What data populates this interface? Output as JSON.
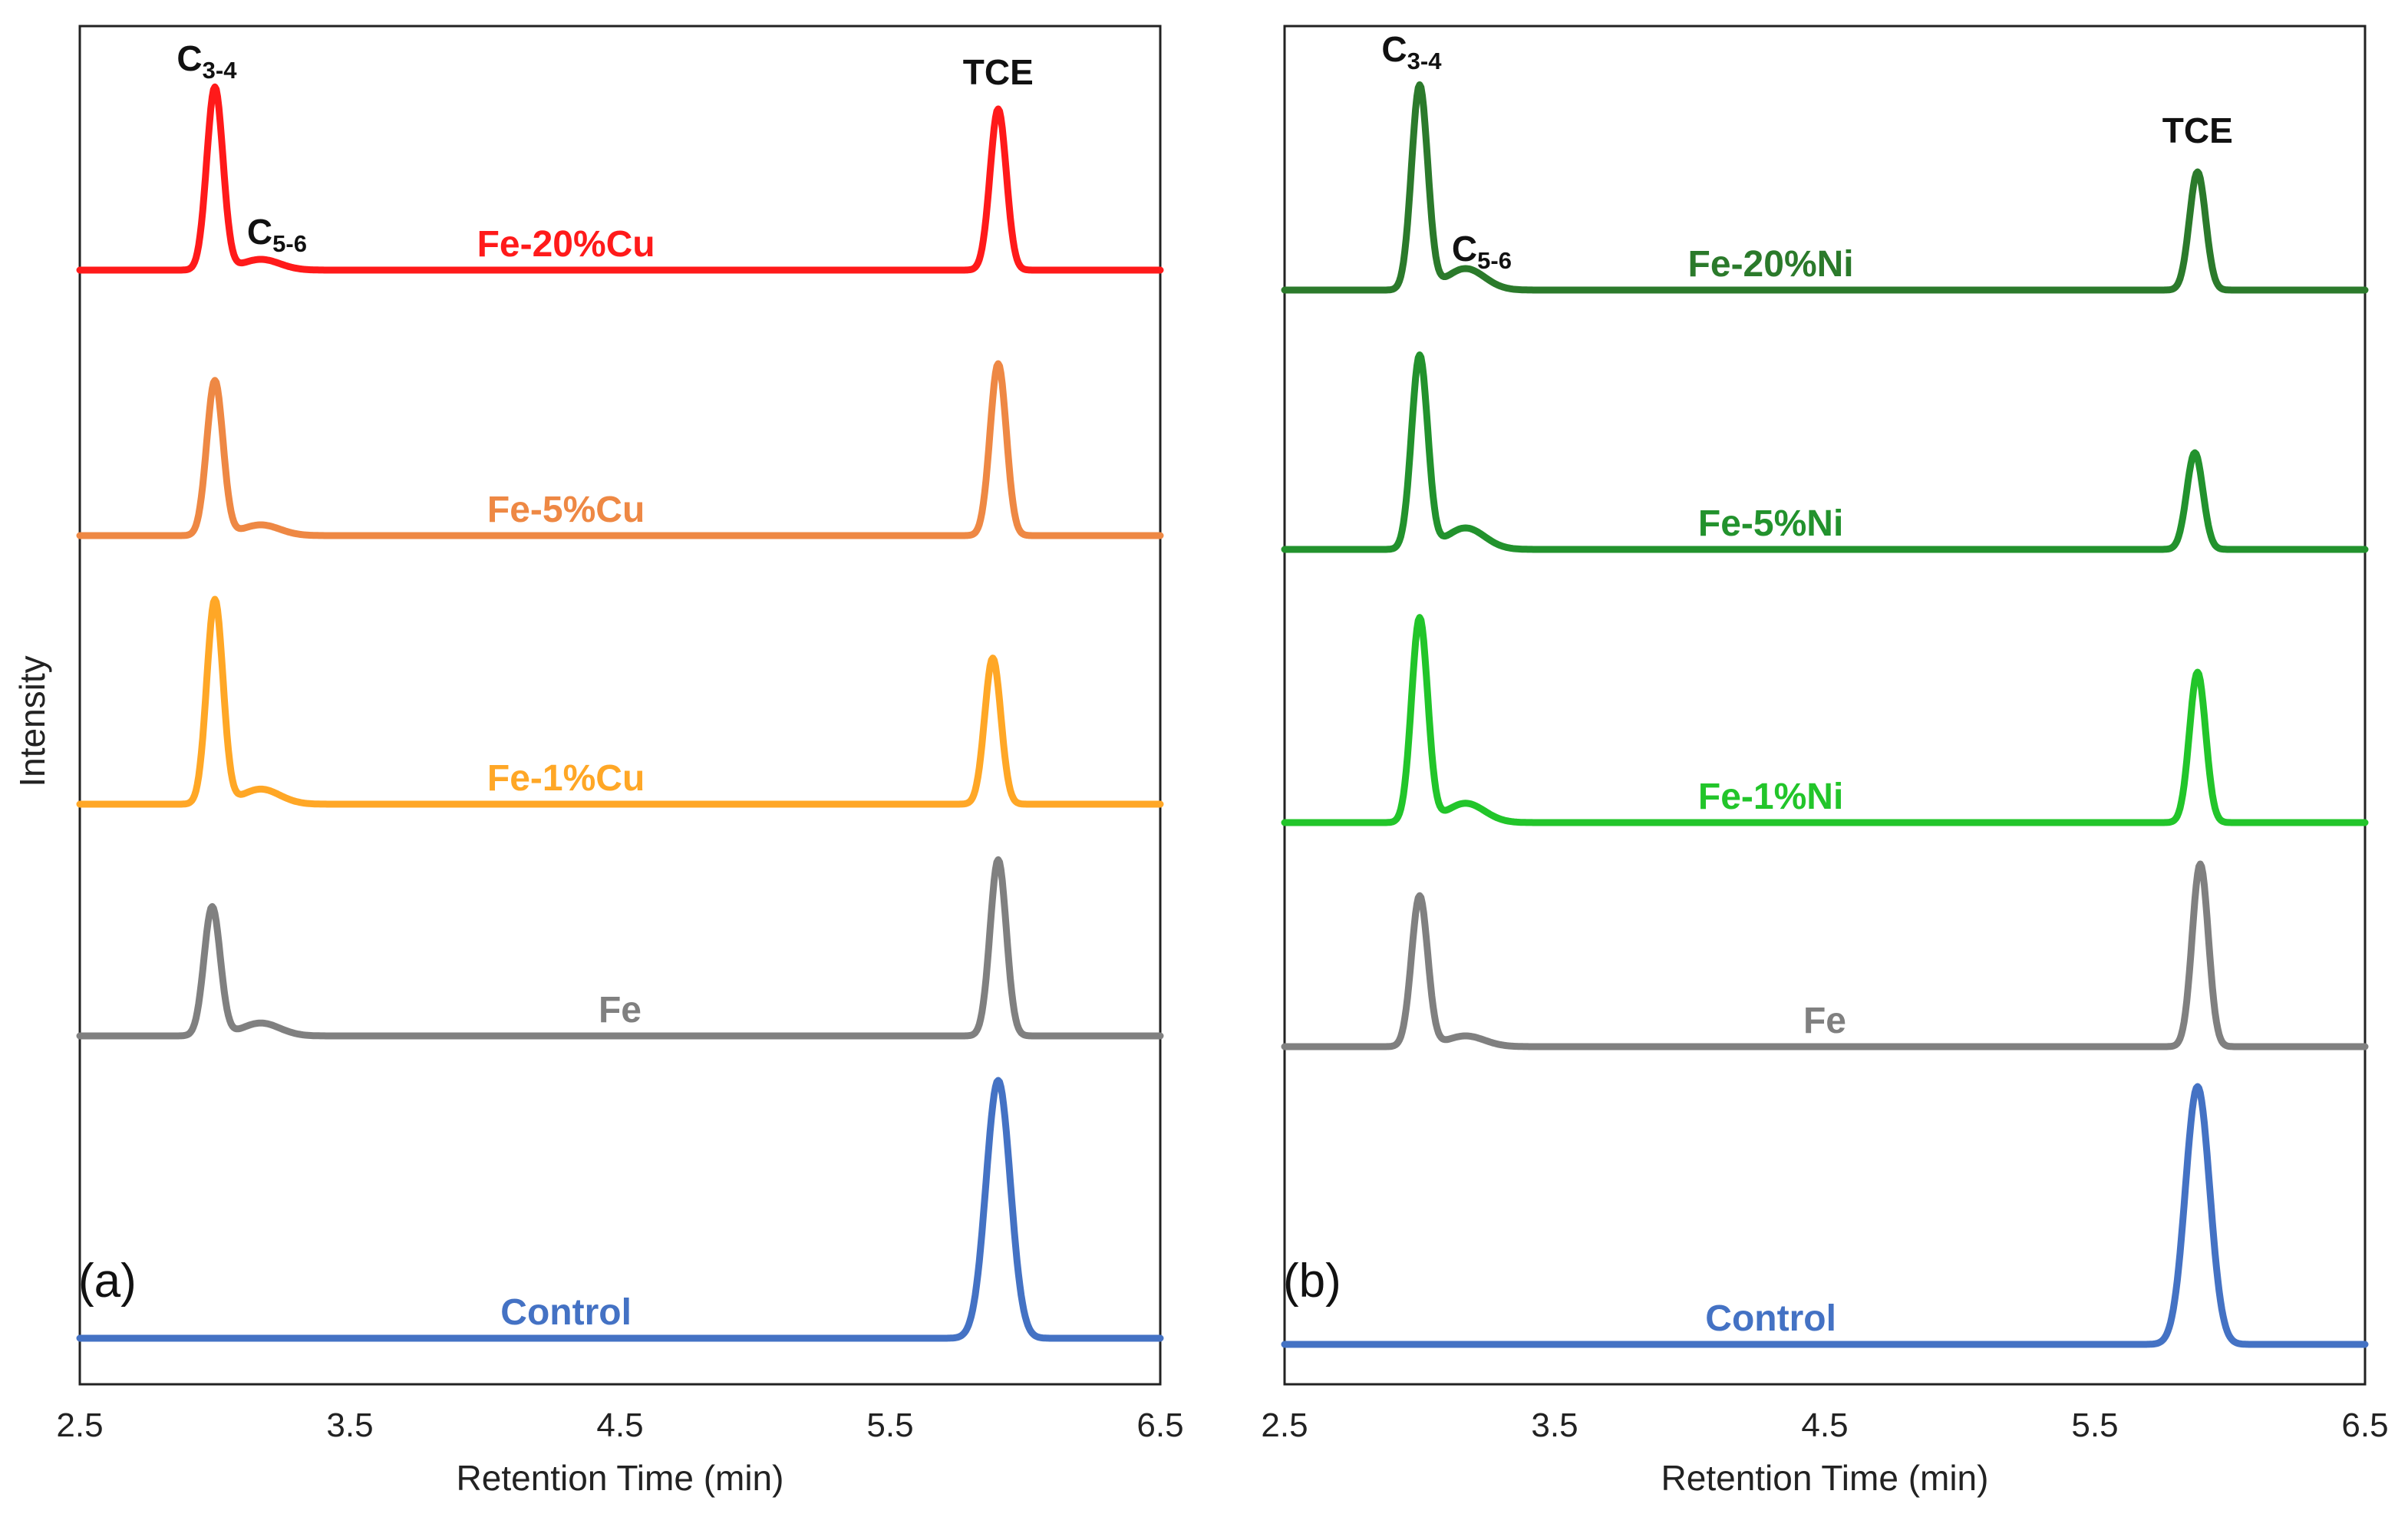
{
  "figure": {
    "y_axis_title": "Intensity"
  },
  "chart_data": [
    {
      "type": "line",
      "panel": "(a)",
      "xlabel": "Retention Time (min)",
      "ylabel": "Intensity",
      "xlim": [
        2.5,
        6.5
      ],
      "xticks": [
        "2.5",
        "3.5",
        "4.5",
        "5.5",
        "6.5"
      ],
      "grid": false,
      "peak_labels": [
        {
          "base": "C",
          "sub": "3-4",
          "x": 2.97
        },
        {
          "base": "C",
          "sub": "5-6",
          "x": 3.23
        },
        {
          "base": "TCE",
          "sub": "",
          "x": 5.9
        }
      ],
      "series": [
        {
          "name": "Fe-20%Cu",
          "color": "#ff1a1a",
          "label_x": 4.3,
          "peaks": [
            {
              "x": 3.0,
              "height": 0.85
            },
            {
              "x": 3.17,
              "height": 0.05
            },
            {
              "x": 5.9,
              "height": 0.75
            }
          ]
        },
        {
          "name": "Fe-5%Cu",
          "color": "#ee8844",
          "label_x": 4.3,
          "peaks": [
            {
              "x": 3.0,
              "height": 0.72
            },
            {
              "x": 3.17,
              "height": 0.05
            },
            {
              "x": 5.9,
              "height": 0.8
            }
          ]
        },
        {
          "name": "Fe-1%Cu",
          "color": "#ffa726",
          "label_x": 4.3,
          "peaks": [
            {
              "x": 3.0,
              "height": 0.95
            },
            {
              "x": 3.17,
              "height": 0.07
            },
            {
              "x": 5.88,
              "height": 0.68
            }
          ]
        },
        {
          "name": "Fe",
          "color": "#808080",
          "label_x": 4.5,
          "peaks": [
            {
              "x": 2.99,
              "height": 0.6
            },
            {
              "x": 3.17,
              "height": 0.06
            },
            {
              "x": 5.9,
              "height": 0.82
            }
          ]
        },
        {
          "name": "Control",
          "color": "#4472c4",
          "label_x": 4.3,
          "peaks": [
            {
              "x": 5.9,
              "height": 1.2
            }
          ]
        }
      ]
    },
    {
      "type": "line",
      "panel": "(b)",
      "xlabel": "Retention Time (min)",
      "ylabel": "Intensity",
      "xlim": [
        2.5,
        6.5
      ],
      "xticks": [
        "2.5",
        "3.5",
        "4.5",
        "5.5",
        "6.5"
      ],
      "grid": false,
      "peak_labels": [
        {
          "base": "C",
          "sub": "3-4",
          "x": 2.97
        },
        {
          "base": "C",
          "sub": "5-6",
          "x": 3.23
        },
        {
          "base": "TCE",
          "sub": "",
          "x": 5.88
        }
      ],
      "series": [
        {
          "name": "Fe-20%Ni",
          "color": "#2b7a2b",
          "label_x": 4.3,
          "peaks": [
            {
              "x": 3.0,
              "height": 0.95
            },
            {
              "x": 3.17,
              "height": 0.1
            },
            {
              "x": 5.88,
              "height": 0.55
            }
          ]
        },
        {
          "name": "Fe-5%Ni",
          "color": "#22922d",
          "label_x": 4.3,
          "peaks": [
            {
              "x": 3.0,
              "height": 0.9
            },
            {
              "x": 3.17,
              "height": 0.1
            },
            {
              "x": 5.87,
              "height": 0.45
            }
          ]
        },
        {
          "name": "Fe-1%Ni",
          "color": "#22c52a",
          "label_x": 4.3,
          "peaks": [
            {
              "x": 3.0,
              "height": 0.95
            },
            {
              "x": 3.17,
              "height": 0.09
            },
            {
              "x": 5.88,
              "height": 0.7
            }
          ]
        },
        {
          "name": "Fe",
          "color": "#808080",
          "label_x": 4.5,
          "peaks": [
            {
              "x": 3.0,
              "height": 0.7
            },
            {
              "x": 3.17,
              "height": 0.05
            },
            {
              "x": 5.89,
              "height": 0.85
            }
          ]
        },
        {
          "name": "Control",
          "color": "#4472c4",
          "label_x": 4.3,
          "peaks": [
            {
              "x": 5.88,
              "height": 1.2
            }
          ]
        }
      ]
    }
  ]
}
